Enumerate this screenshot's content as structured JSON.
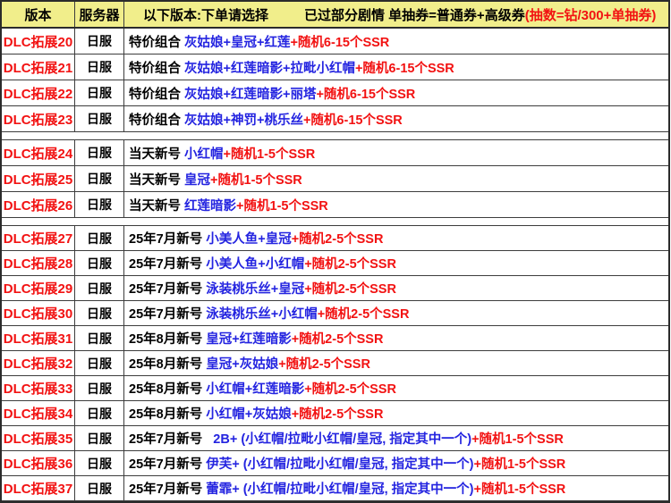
{
  "colors": {
    "header_bg": "#f1ee8b",
    "accent_red": "#f21212",
    "accent_blue": "#2424e0"
  },
  "header": {
    "col_version": "版本",
    "col_server": "服务器",
    "instruction": "以下版本:下单请选择",
    "note_black": "已过部分剧情 单抽券=普通券+高级券",
    "note_red": "(抽数=钻/300+单抽券)"
  },
  "rows": [
    {
      "version": "DLC拓展20",
      "server": "日服",
      "prefix": "特价组合 ",
      "blue": "灰姑娘+皇冠+红莲",
      "red": "+随机6-15个SSR"
    },
    {
      "version": "DLC拓展21",
      "server": "日服",
      "prefix": "特价组合 ",
      "blue": "灰姑娘+红莲暗影+拉毗小红帽",
      "red": "+随机6-15个SSR"
    },
    {
      "version": "DLC拓展22",
      "server": "日服",
      "prefix": "特价组合 ",
      "blue": "灰姑娘+红莲暗影+丽塔",
      "red": "+随机6-15个SSR"
    },
    {
      "version": "DLC拓展23",
      "server": "日服",
      "prefix": "特价组合 ",
      "blue": "灰姑娘+神罚+桃乐丝",
      "red": "+随机6-15个SSR"
    },
    {
      "type": "spacer"
    },
    {
      "version": "DLC拓展24",
      "server": "日服",
      "prefix": "当天新号 ",
      "blue": "小红帽",
      "red": "+随机1-5个SSR"
    },
    {
      "version": "DLC拓展25",
      "server": "日服",
      "prefix": "当天新号 ",
      "blue": "皇冠",
      "red": "+随机1-5个SSR"
    },
    {
      "version": "DLC拓展26",
      "server": "日服",
      "prefix": "当天新号 ",
      "blue": "红莲暗影",
      "red": "+随机1-5个SSR"
    },
    {
      "type": "spacer"
    },
    {
      "version": "DLC拓展27",
      "server": "日服",
      "prefix": "25年7月新号 ",
      "blue": "小美人鱼+皇冠",
      "red": "+随机2-5个SSR"
    },
    {
      "version": "DLC拓展28",
      "server": "日服",
      "prefix": "25年7月新号 ",
      "blue": "小美人鱼+小红帽",
      "red": "+随机2-5个SSR"
    },
    {
      "version": "DLC拓展29",
      "server": "日服",
      "prefix": "25年7月新号 ",
      "blue": "泳装桃乐丝+皇冠",
      "red": "+随机2-5个SSR"
    },
    {
      "version": "DLC拓展30",
      "server": "日服",
      "prefix": "25年7月新号 ",
      "blue": "泳装桃乐丝+小红帽",
      "red": "+随机2-5个SSR"
    },
    {
      "version": "DLC拓展31",
      "server": "日服",
      "prefix": "25年8月新号 ",
      "blue": "皇冠+红莲暗影",
      "red": "+随机2-5个SSR"
    },
    {
      "version": "DLC拓展32",
      "server": "日服",
      "prefix": "25年8月新号 ",
      "blue": "皇冠+灰姑娘",
      "red": "+随机2-5个SSR"
    },
    {
      "version": "DLC拓展33",
      "server": "日服",
      "prefix": "25年8月新号 ",
      "blue": "小红帽+红莲暗影",
      "red": "+随机2-5个SSR"
    },
    {
      "version": "DLC拓展34",
      "server": "日服",
      "prefix": "25年8月新号 ",
      "blue": "小红帽+灰姑娘",
      "red": "+随机2-5个SSR"
    },
    {
      "version": "DLC拓展35",
      "server": "日服",
      "prefix": "25年7月新号   ",
      "blue": "2B+ (小红帽/拉毗小红帽/皇冠, 指定其中一个)",
      "red": "+随机1-5个SSR"
    },
    {
      "version": "DLC拓展36",
      "server": "日服",
      "prefix": "25年7月新号 ",
      "blue": "伊芙+ (小红帽/拉毗小红帽/皇冠, 指定其中一个)",
      "red": "+随机1-5个SSR"
    },
    {
      "version": "DLC拓展37",
      "server": "日服",
      "prefix": "25年7月新号 ",
      "blue": "蕾霏+ (小红帽/拉毗小红帽/皇冠, 指定其中一个)",
      "red": "+随机1-5个SSR"
    }
  ]
}
